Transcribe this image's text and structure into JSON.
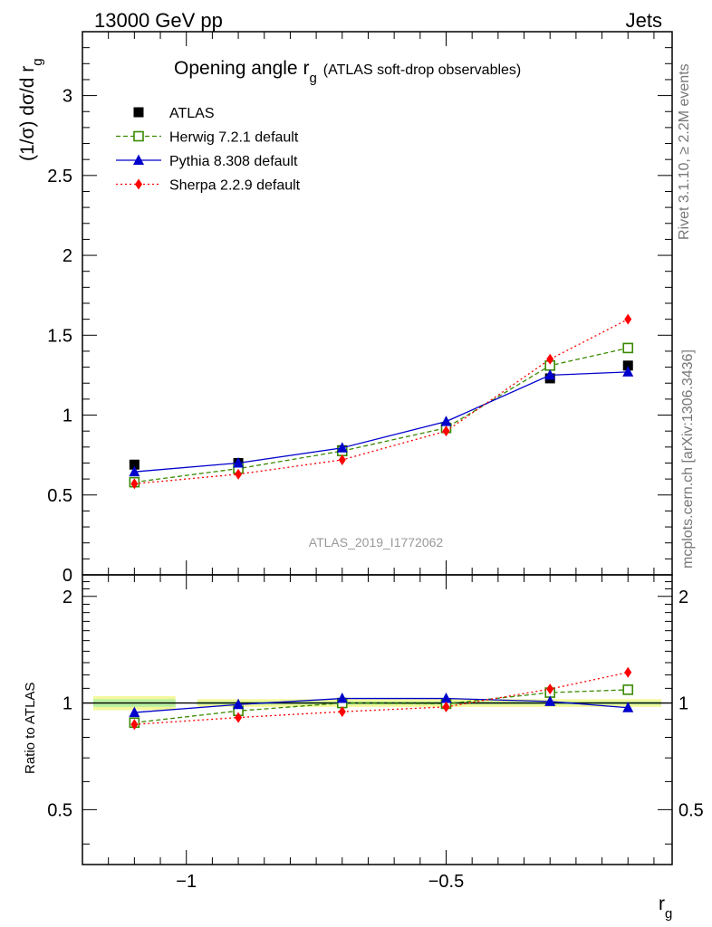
{
  "header": {
    "left": "13000 GeV pp",
    "right": "Jets"
  },
  "side_text": {
    "rivet": "Rivet 3.1.10, ≥ 2.2M events",
    "mcplots": "mcplots.cern.ch [arXiv:1306.3436]"
  },
  "chart_data": [
    {
      "type": "line",
      "title": "Opening angle r",
      "title_sub": "g",
      "title_suffix": "(ATLAS soft-drop observables)",
      "ylabel": "(1/σ) dσ/d r",
      "ylabel_sub": "g",
      "watermark": "ATLAS_2019_I1772062",
      "xlim": [
        -1.2,
        -0.065
      ],
      "ylim": [
        0,
        3.4
      ],
      "yticks": [
        0,
        0.5,
        1,
        1.5,
        2,
        2.5,
        3
      ],
      "ytick_labels": [
        "0",
        "0.5",
        "1",
        "1.5",
        "2",
        "2.5",
        "3"
      ],
      "x": [
        -1.1,
        -0.9,
        -0.7,
        -0.5,
        -0.3,
        -0.15
      ],
      "series": [
        {
          "name": "ATLAS",
          "style": "data",
          "color": "#000000",
          "marker": "square",
          "values": [
            0.69,
            0.7,
            0.78,
            0.92,
            1.23,
            1.31
          ]
        },
        {
          "name": "Herwig 7.2.1 default",
          "style": "dashed",
          "color": "#3a8a00",
          "marker": "open-square",
          "values": [
            0.58,
            0.665,
            0.775,
            0.92,
            1.31,
            1.42
          ]
        },
        {
          "name": "Pythia 8.308 default",
          "style": "solid",
          "color": "#0000cc",
          "marker": "triangle",
          "values": [
            0.645,
            0.7,
            0.795,
            0.96,
            1.25,
            1.27
          ]
        },
        {
          "name": "Sherpa 2.2.9 default",
          "style": "dotted",
          "color": "#ff0000",
          "marker": "diamond",
          "values": [
            0.57,
            0.63,
            0.72,
            0.9,
            1.35,
            1.6
          ]
        }
      ],
      "legend": "top-left"
    },
    {
      "type": "line",
      "ylabel": "Ratio to ATLAS",
      "xlabel": "r",
      "xlabel_sub": "g",
      "xlim": [
        -1.2,
        -0.065
      ],
      "ylim": [
        0.35,
        2.3
      ],
      "xticks": [
        -1,
        -0.5
      ],
      "xtick_labels": [
        "−1",
        "−0.5"
      ],
      "yticks": [
        0.5,
        1,
        2
      ],
      "ytick_labels": [
        "0.5",
        "1",
        "2"
      ],
      "x": [
        -1.1,
        -0.9,
        -0.7,
        -0.5,
        -0.3,
        -0.15
      ],
      "series": [
        {
          "name": "Herwig 7.2.1 default",
          "style": "dashed",
          "color": "#3a8a00",
          "marker": "open-square",
          "values": [
            0.88,
            0.95,
            1.0,
            0.995,
            1.07,
            1.09
          ]
        },
        {
          "name": "Pythia 8.308 default",
          "style": "solid",
          "color": "#0000cc",
          "marker": "triangle",
          "values": [
            0.94,
            0.99,
            1.03,
            1.03,
            1.01,
            0.97
          ]
        },
        {
          "name": "Sherpa 2.2.9 default",
          "style": "dotted",
          "color": "#ff0000",
          "marker": "diamond",
          "values": [
            0.87,
            0.91,
            0.945,
            0.975,
            1.095,
            1.22
          ]
        }
      ],
      "uncertainty_band": [
        {
          "x0": -1.2,
          "x1": -1.0,
          "outer": [
            0.955,
            1.045
          ],
          "inner": [
            0.975,
            1.025
          ]
        },
        {
          "x0": -1.0,
          "x1": -0.065,
          "outer": [
            0.975,
            1.025
          ],
          "inner": [
            0.99,
            1.01
          ]
        }
      ],
      "band_colors": {
        "outer": "#f4f79a",
        "inner": "#b8f0a0"
      }
    }
  ]
}
